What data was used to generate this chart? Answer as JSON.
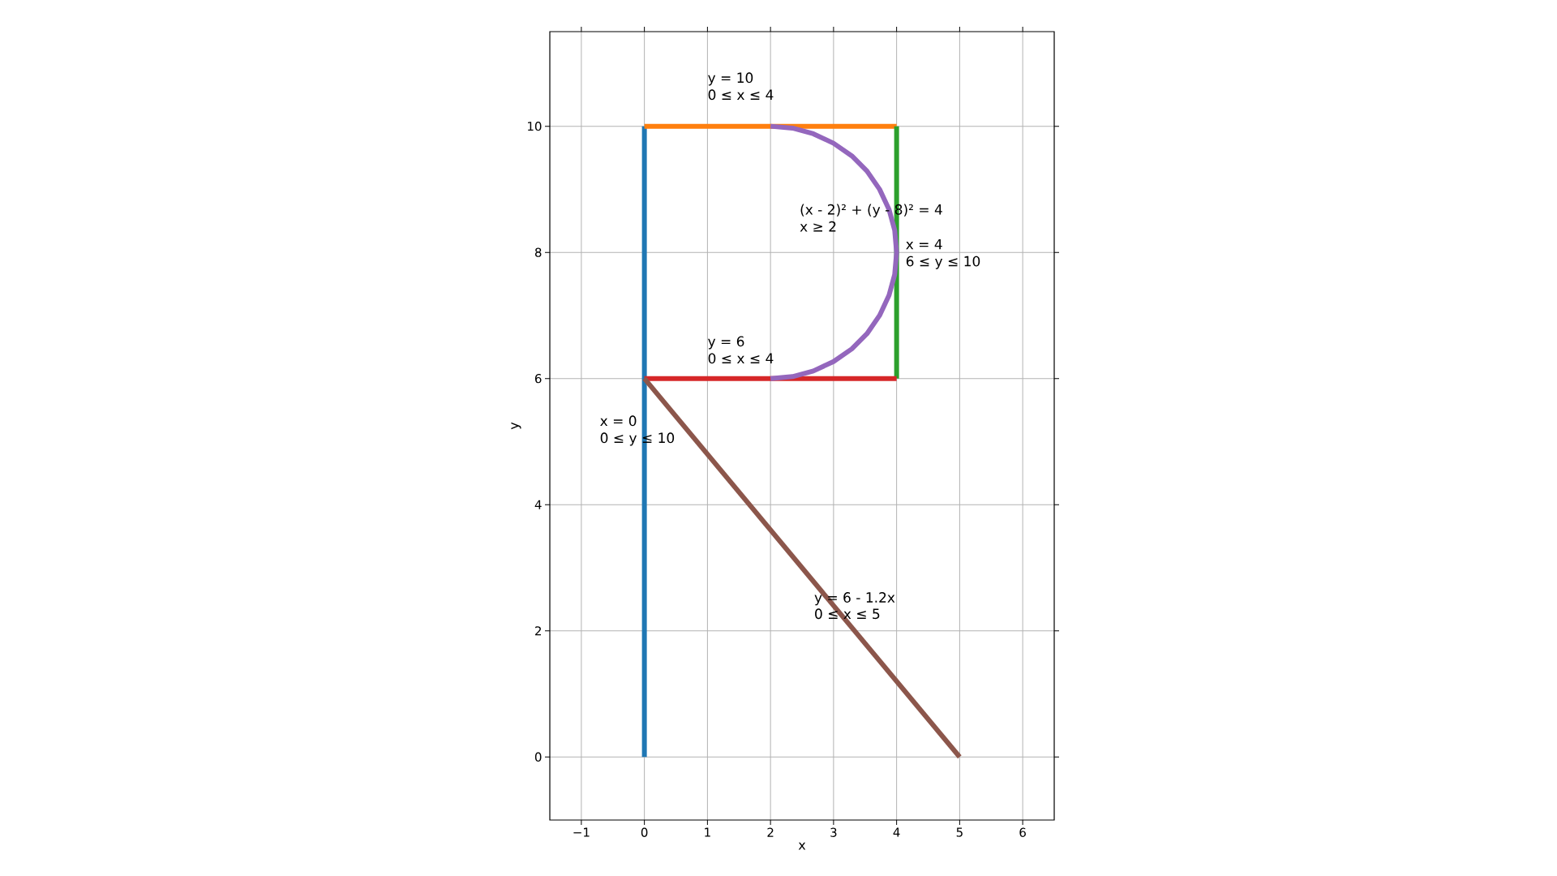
{
  "chart_data": {
    "type": "line",
    "xlabel": "x",
    "ylabel": "y",
    "xlim": [
      -1.5,
      6.5
    ],
    "ylim": [
      -1,
      11.5
    ],
    "xticks": [
      {
        "value": -1,
        "label": "−1"
      },
      0,
      1,
      2,
      3,
      4,
      5,
      6
    ],
    "yticks": [
      0,
      2,
      4,
      6,
      8,
      10
    ],
    "grid": true,
    "marker": "none",
    "line_style": "solid",
    "series": [
      {
        "color": "#1f77b4",
        "x": [
          0,
          0
        ],
        "values": [
          0,
          10
        ]
      },
      {
        "color": "#ff7f0e",
        "x": [
          0,
          4
        ],
        "values": [
          10,
          10
        ]
      },
      {
        "color": "#2ca02c",
        "x": [
          4,
          4
        ],
        "values": [
          6,
          10
        ]
      },
      {
        "color": "#d62728",
        "x": [
          0,
          4
        ],
        "values": [
          6,
          6
        ]
      },
      {
        "color": "#9467bd",
        "x": [
          2,
          2.35,
          2.68,
          3,
          3.29,
          3.53,
          3.73,
          3.88,
          3.97,
          4,
          3.97,
          3.88,
          3.73,
          3.53,
          3.29,
          3,
          2.68,
          2.35,
          2
        ],
        "values": [
          6,
          6.03,
          6.12,
          6.27,
          6.47,
          6.71,
          7,
          7.32,
          7.65,
          8,
          8.35,
          8.68,
          9,
          9.29,
          9.53,
          9.73,
          9.88,
          9.97,
          10
        ]
      },
      {
        "color": "#8c564b",
        "x": [
          0,
          5
        ],
        "values": [
          6,
          0
        ]
      }
    ],
    "annotations": [
      "y = 10",
      "0 ≤ x ≤ 4",
      "(x - 2)² + (y - 8)² = 4",
      "x ≥ 2",
      "x = 4",
      "6 ≤ y ≤ 10",
      "y = 6",
      "0 ≤ x ≤ 4",
      "x = 0",
      "0 ≤ y ≤ 10",
      "y = 6 - 1.2x",
      "0 ≤ x ≤ 5"
    ]
  }
}
